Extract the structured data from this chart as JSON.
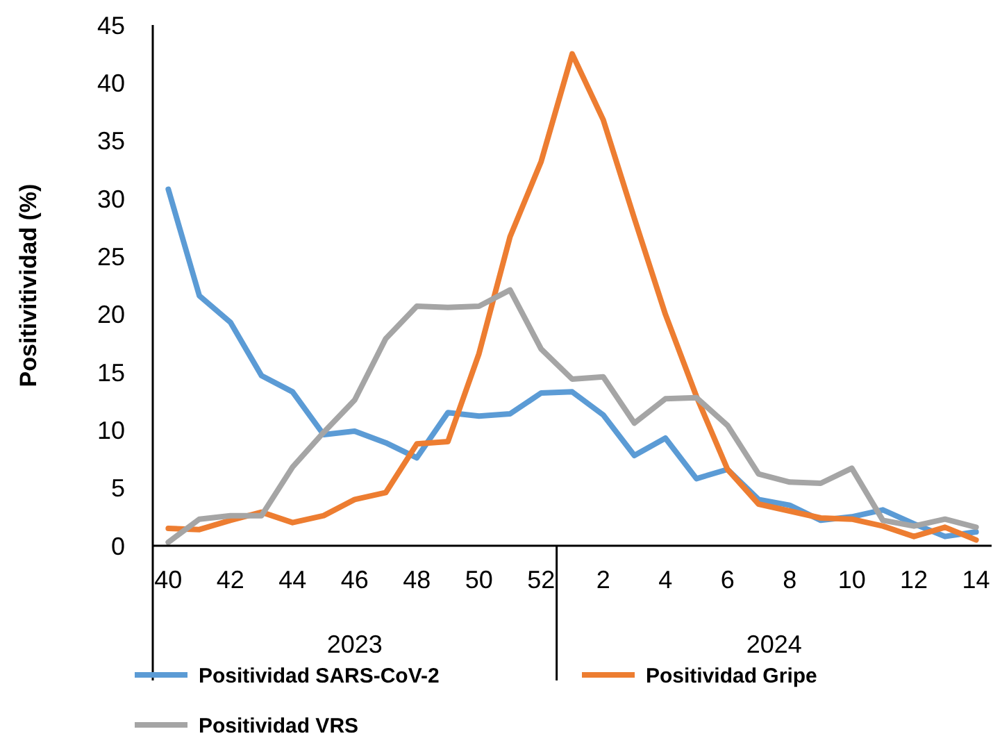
{
  "chart_data": {
    "type": "line",
    "ylabel": "Positivitividad (%)",
    "categories": [
      "40",
      null,
      "42",
      null,
      "44",
      null,
      "46",
      null,
      "48",
      null,
      "50",
      null,
      "52",
      null,
      "2",
      null,
      "4",
      null,
      "6",
      null,
      "8",
      null,
      "10",
      null,
      "12",
      null,
      "14"
    ],
    "series": [
      {
        "name": "Positividad SARS-CoV-2",
        "color": "#5b9bd5",
        "values": [
          30.8,
          21.6,
          19.3,
          14.7,
          13.3,
          9.6,
          9.9,
          8.9,
          7.6,
          11.5,
          11.2,
          11.4,
          13.2,
          13.3,
          11.3,
          7.8,
          9.3,
          5.8,
          6.6,
          4.0,
          3.5,
          2.2,
          2.5,
          3.1,
          1.9,
          0.8,
          1.2
        ]
      },
      {
        "name": "Positividad Gripe",
        "color": "#ed7d31",
        "values": [
          1.5,
          1.4,
          2.2,
          2.9,
          2.0,
          2.6,
          4.0,
          4.6,
          8.8,
          9.0,
          16.6,
          26.7,
          33.2,
          42.5,
          36.8,
          28.3,
          20.0,
          12.9,
          6.6,
          3.6,
          3.0,
          2.4,
          2.3,
          1.7,
          0.8,
          1.6,
          0.5
        ]
      },
      {
        "name": "Positividad VRS",
        "color": "#a5a5a5",
        "values": [
          0.3,
          2.3,
          2.6,
          2.6,
          6.8,
          9.8,
          12.6,
          17.9,
          20.7,
          20.6,
          20.7,
          22.1,
          17.0,
          14.4,
          14.6,
          10.6,
          12.7,
          12.8,
          10.4,
          6.2,
          5.5,
          5.4,
          6.7,
          2.2,
          1.7,
          2.3,
          1.6
        ]
      }
    ],
    "ylim": [
      0,
      45
    ],
    "yticks": [
      0,
      5,
      10,
      15,
      20,
      25,
      30,
      35,
      40,
      45
    ],
    "annotations": [
      "2023",
      "2024"
    ],
    "grid": false,
    "legend": "bottom",
    "marker": "none",
    "line_style": "solid"
  }
}
